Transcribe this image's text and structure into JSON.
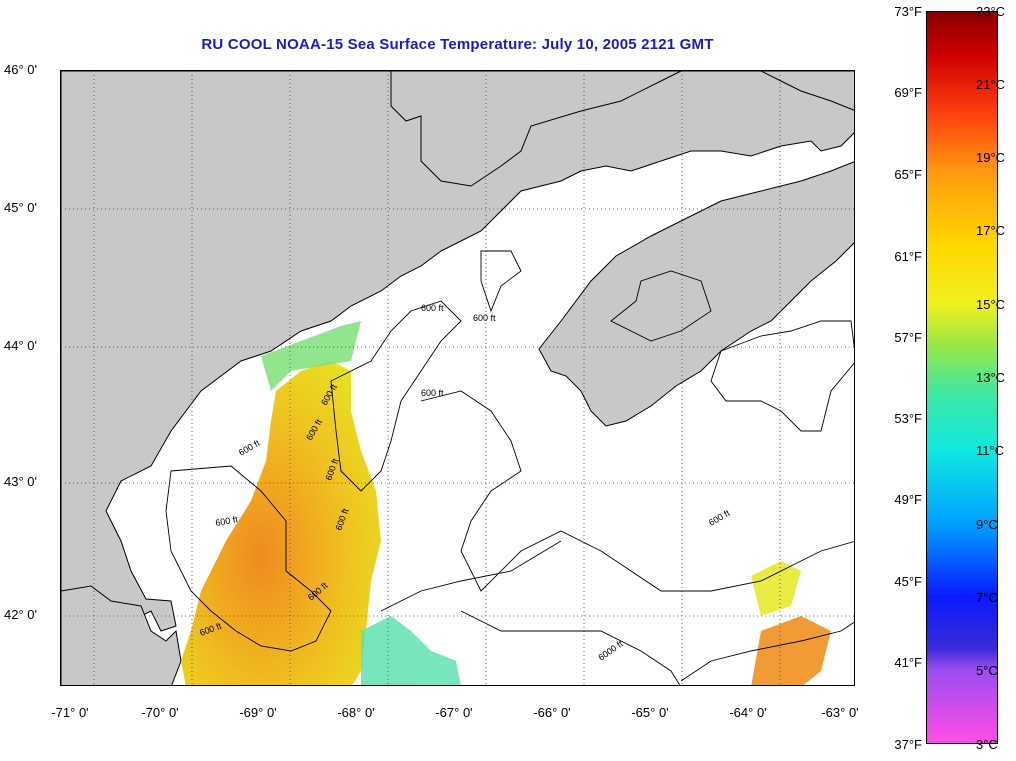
{
  "title": "RU COOL  NOAA-15  Sea Surface Temperature:  July 10, 2005 2121 GMT",
  "lat_labels": [
    "46° 0'",
    "45° 0'",
    "44° 0'",
    "43° 0'",
    "42° 0'"
  ],
  "lon_labels": [
    "-71° 0'",
    "-70° 0'",
    "-69° 0'",
    "-68° 0'",
    "-67° 0'",
    "-66° 0'",
    "-65° 0'",
    "-64° 0'",
    "-63° 0'"
  ],
  "depth_labels": [
    "600 ft",
    "600 ft",
    "600 ft",
    "600 ft",
    "600 ft",
    "600 ft",
    "600 ft",
    "600 ft",
    "600 ft",
    "600 ft",
    "600 ft",
    "600 ft",
    "6000 ft"
  ],
  "colorbar": {
    "fahrenheit": [
      "73°F",
      "69°F",
      "65°F",
      "61°F",
      "57°F",
      "53°F",
      "49°F",
      "45°F",
      "41°F",
      "37°F"
    ],
    "celsius": [
      "23°C",
      "21°C",
      "19°C",
      "17°C",
      "15°C",
      "13°C",
      "11°C",
      "9°C",
      "7°C",
      "5°C",
      "3°C"
    ]
  },
  "colors": {
    "land": "#c8c8c8",
    "title": "#1a1acc",
    "warm": "#f0a020",
    "cool": "#60e0a0"
  }
}
